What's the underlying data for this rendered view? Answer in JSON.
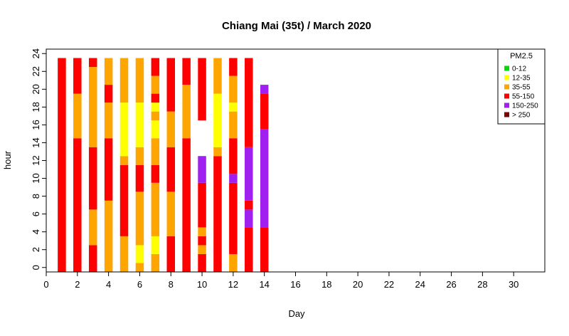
{
  "chart_data": {
    "type": "bar",
    "title": "Chiang Mai (35t) / March 2020",
    "xlabel": "Day",
    "ylabel": "hour",
    "xlim": [
      0,
      32
    ],
    "ylim": [
      -0.5,
      24.5
    ],
    "x_ticks": [
      0,
      2,
      4,
      6,
      8,
      10,
      12,
      14,
      16,
      18,
      20,
      22,
      24,
      26,
      28,
      30
    ],
    "y_ticks": [
      0,
      2,
      4,
      6,
      8,
      10,
      12,
      14,
      16,
      18,
      20,
      22,
      24
    ],
    "legend": {
      "title": "PM2.5",
      "position": "top-right",
      "entries": [
        {
          "label": "0-12",
          "color": "#00dd00"
        },
        {
          "label": "12-35",
          "color": "#ffff00"
        },
        {
          "label": "35-55",
          "color": "#ffa500"
        },
        {
          "label": "55-150",
          "color": "#ff0000"
        },
        {
          "label": "150-250",
          "color": "#a020f0"
        },
        {
          "label": "> 250",
          "color": "#7f0000"
        }
      ]
    },
    "days": [
      {
        "day": 1,
        "segments": [
          [
            0,
            23,
            "55-150"
          ]
        ]
      },
      {
        "day": 2,
        "segments": [
          [
            0,
            14,
            "55-150"
          ],
          [
            15,
            19,
            "35-55"
          ],
          [
            20,
            23,
            "55-150"
          ]
        ]
      },
      {
        "day": 3,
        "segments": [
          [
            0,
            2,
            "55-150"
          ],
          [
            3,
            6,
            "35-55"
          ],
          [
            7,
            13,
            "55-150"
          ],
          [
            14,
            22,
            "35-55"
          ],
          [
            23,
            23,
            "55-150"
          ]
        ]
      },
      {
        "day": 4,
        "segments": [
          [
            0,
            7,
            "35-55"
          ],
          [
            8,
            14,
            "55-150"
          ],
          [
            15,
            18,
            "35-55"
          ],
          [
            19,
            20,
            "55-150"
          ],
          [
            21,
            23,
            "35-55"
          ]
        ]
      },
      {
        "day": 5,
        "segments": [
          [
            0,
            3,
            "35-55"
          ],
          [
            4,
            11,
            "55-150"
          ],
          [
            12,
            12,
            "35-55"
          ],
          [
            13,
            18,
            "12-35"
          ],
          [
            19,
            23,
            "35-55"
          ]
        ]
      },
      {
        "day": 6,
        "segments": [
          [
            0,
            0,
            "35-55"
          ],
          [
            1,
            2,
            "12-35"
          ],
          [
            3,
            8,
            "35-55"
          ],
          [
            9,
            11,
            "55-150"
          ],
          [
            12,
            13,
            "35-55"
          ],
          [
            14,
            18,
            "12-35"
          ],
          [
            19,
            23,
            "35-55"
          ]
        ]
      },
      {
        "day": 7,
        "segments": [
          [
            0,
            1,
            "35-55"
          ],
          [
            2,
            3,
            "12-35"
          ],
          [
            4,
            9,
            "35-55"
          ],
          [
            10,
            11,
            "55-150"
          ],
          [
            12,
            14,
            "35-55"
          ],
          [
            15,
            16,
            "12-35"
          ],
          [
            17,
            17,
            "35-55"
          ],
          [
            18,
            18,
            "12-35"
          ],
          [
            19,
            19,
            "55-150"
          ],
          [
            20,
            21,
            "35-55"
          ],
          [
            22,
            23,
            "55-150"
          ]
        ]
      },
      {
        "day": 8,
        "segments": [
          [
            0,
            3,
            "55-150"
          ],
          [
            4,
            8,
            "35-55"
          ],
          [
            9,
            13,
            "55-150"
          ],
          [
            14,
            17,
            "35-55"
          ],
          [
            18,
            23,
            "55-150"
          ]
        ]
      },
      {
        "day": 9,
        "segments": [
          [
            0,
            14,
            "55-150"
          ],
          [
            15,
            20,
            "35-55"
          ],
          [
            21,
            23,
            "55-150"
          ]
        ]
      },
      {
        "day": 10,
        "segments": [
          [
            0,
            1,
            "55-150"
          ],
          [
            2,
            2,
            "35-55"
          ],
          [
            3,
            3,
            "55-150"
          ],
          [
            4,
            4,
            "35-55"
          ],
          [
            5,
            9,
            "55-150"
          ],
          [
            10,
            12,
            "150-250"
          ],
          [
            17,
            23,
            "55-150"
          ]
        ]
      },
      {
        "day": 11,
        "segments": [
          [
            0,
            12,
            "55-150"
          ],
          [
            13,
            13,
            "35-55"
          ],
          [
            14,
            19,
            "12-35"
          ],
          [
            20,
            23,
            "35-55"
          ]
        ]
      },
      {
        "day": 12,
        "segments": [
          [
            0,
            1,
            "35-55"
          ],
          [
            2,
            9,
            "55-150"
          ],
          [
            10,
            10,
            "150-250"
          ],
          [
            11,
            14,
            "55-150"
          ],
          [
            15,
            17,
            "35-55"
          ],
          [
            18,
            18,
            "12-35"
          ],
          [
            19,
            21,
            "35-55"
          ],
          [
            22,
            23,
            "55-150"
          ]
        ]
      },
      {
        "day": 13,
        "segments": [
          [
            0,
            4,
            "55-150"
          ],
          [
            5,
            6,
            "150-250"
          ],
          [
            7,
            7,
            "55-150"
          ],
          [
            8,
            13,
            "150-250"
          ],
          [
            14,
            23,
            "55-150"
          ]
        ]
      },
      {
        "day": 14,
        "segments": [
          [
            0,
            4,
            "55-150"
          ],
          [
            5,
            15,
            "150-250"
          ],
          [
            16,
            19,
            "55-150"
          ],
          [
            20,
            20,
            "150-250"
          ]
        ]
      }
    ]
  }
}
